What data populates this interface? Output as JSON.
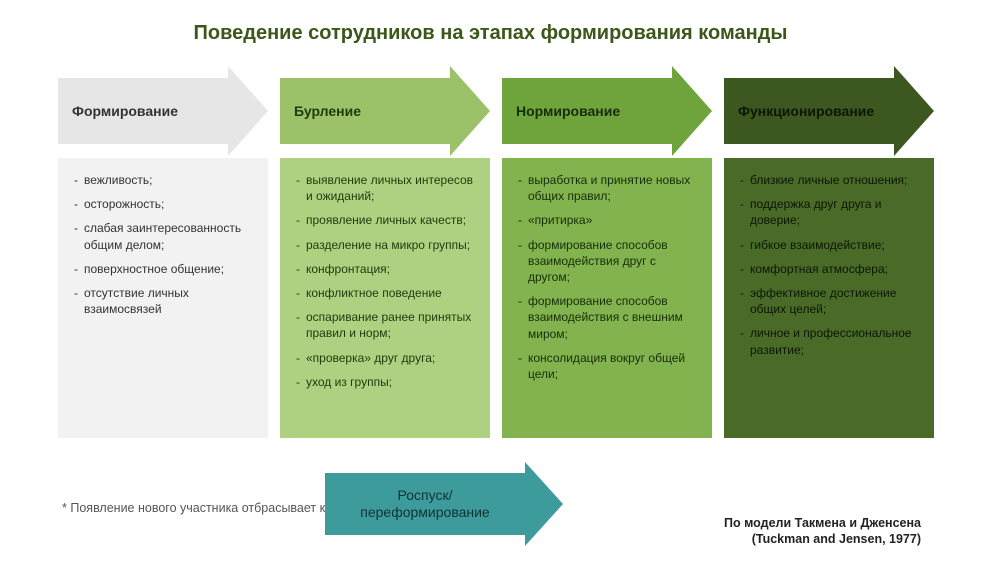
{
  "title": "Поведение сотрудников на этапах формирования команды",
  "stages": [
    {
      "label": "Формирование",
      "arrow_color": "#e6e6e6",
      "arrow_text_color": "#333333",
      "card_bg": "#f2f2f2",
      "card_text_color": "#333333",
      "items": [
        "вежливость;",
        "осторожность;",
        "слабая заинтересованность общим делом;",
        "поверхностное общение;",
        "отсутствие личных взаимосвязей"
      ]
    },
    {
      "label": "Бурление",
      "arrow_color": "#9bc268",
      "arrow_text_color": "#1f3b0c",
      "card_bg": "#aed081",
      "card_text_color": "#1f3b0c",
      "items": [
        "выявление личных интересов и ожиданий;",
        "проявление личных качеств;",
        "разделение на микро группы;",
        "конфронтация;",
        "конфликтное поведение",
        "оспаривание ранее принятых правил и норм;",
        "«проверка» друг друга;",
        "уход из группы;"
      ]
    },
    {
      "label": "Нормирование",
      "arrow_color": "#6fa43d",
      "arrow_text_color": "#162e07",
      "card_bg": "#83b34e",
      "card_text_color": "#162e07",
      "items": [
        "выработка и принятие новых общих правил;",
        "«притирка»",
        "формирование способов взаимодействия друг с другом;",
        "формирование способов взаимодействия с внешним миром;",
        "консолидация вокруг общей цели;"
      ]
    },
    {
      "label": "Функционирование",
      "arrow_color": "#3c5720",
      "arrow_text_color": "#0b1603",
      "card_bg": "#4a6b28",
      "card_text_color": "#0b1603",
      "items": [
        "близкие личные отношения;",
        "поддержка друг друга и доверие;",
        "гибкое взаимодействие;",
        "комфортная атмосфера;",
        "эффективное достижение общих целей;",
        "личное и профессиональное развитие;"
      ]
    }
  ],
  "footnote_marker": "*",
  "footnote": "Появление нового участника отбрасывает команду на первый этап.",
  "rospusk": {
    "label": "Роспуск/ переформирование",
    "color": "#3d9b9b",
    "text_color": "#113333"
  },
  "credit_line1": "По модели Такмена и Дженсена",
  "credit_line2": "(Tuckman and Jensen, 1977)"
}
